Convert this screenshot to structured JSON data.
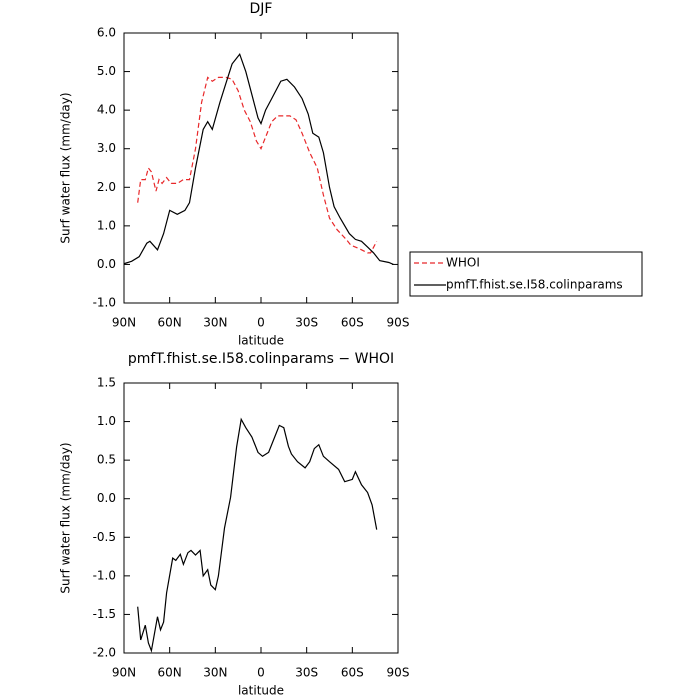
{
  "chart_data": [
    {
      "type": "line",
      "title": "DJF",
      "xlabel": "latitude",
      "ylabel": "Surf water flux (mm/day)",
      "xlim": [
        90,
        -90
      ],
      "xticks": [
        {
          "value": 90,
          "label": "90N"
        },
        {
          "value": 60,
          "label": "60N"
        },
        {
          "value": 30,
          "label": "30N"
        },
        0,
        {
          "value": -30,
          "label": "30S"
        },
        {
          "value": -60,
          "label": "60S"
        },
        {
          "value": -90,
          "label": "90S"
        }
      ],
      "ylim": [
        -1,
        6
      ],
      "yticks": [
        {
          "value": -1,
          "label": "-1.0"
        },
        {
          "value": 0,
          "label": "0.0"
        },
        {
          "value": 1,
          "label": "1.0"
        },
        {
          "value": 2,
          "label": "2.0"
        },
        {
          "value": 3,
          "label": "3.0"
        },
        {
          "value": 4,
          "label": "4.0"
        },
        {
          "value": 5,
          "label": "5.0"
        },
        {
          "value": 6,
          "label": "6.0"
        }
      ],
      "legend": "outside-right",
      "series": [
        {
          "name": "WHOI",
          "color": "#e8282a",
          "dash": true,
          "x": [
            81,
            79,
            76,
            74,
            72,
            69,
            67,
            65,
            62,
            59,
            55,
            51,
            47,
            43,
            39,
            35,
            32,
            28,
            23,
            19,
            15,
            11,
            7,
            3,
            0,
            -3,
            -7,
            -11,
            -19,
            -23,
            -27,
            -32,
            -37,
            -41,
            -45,
            -50,
            -56,
            -59,
            -65,
            -70,
            -72,
            -76
          ],
          "values": [
            1.6,
            2.2,
            2.2,
            2.5,
            2.4,
            1.9,
            2.2,
            2.1,
            2.25,
            2.1,
            2.1,
            2.2,
            2.2,
            3.0,
            4.2,
            4.85,
            4.75,
            4.85,
            4.85,
            4.8,
            4.5,
            4.0,
            3.7,
            3.2,
            3.0,
            3.3,
            3.7,
            3.85,
            3.85,
            3.75,
            3.4,
            2.9,
            2.5,
            1.8,
            1.2,
            0.9,
            0.65,
            0.5,
            0.4,
            0.3,
            0.3,
            0.6
          ]
        },
        {
          "name": "pmfT.fhist.se.I58.colinparams",
          "color": "#000000",
          "dash": false,
          "x": [
            90,
            85,
            80,
            75,
            73,
            68,
            64,
            60,
            55,
            50,
            47,
            43,
            38,
            35,
            32,
            27,
            23,
            19,
            14,
            10,
            6,
            2,
            0,
            -3,
            -7,
            -13,
            -17,
            -22,
            -27,
            -31,
            -34,
            -38,
            -41,
            -45,
            -48,
            -52,
            -58,
            -62,
            -66,
            -70,
            -74,
            -78,
            -84,
            -87
          ],
          "values": [
            0.02,
            0.08,
            0.2,
            0.55,
            0.6,
            0.38,
            0.8,
            1.4,
            1.3,
            1.4,
            1.6,
            2.5,
            3.5,
            3.7,
            3.5,
            4.2,
            4.7,
            5.2,
            5.45,
            5.0,
            4.4,
            3.8,
            3.65,
            4.0,
            4.3,
            4.75,
            4.8,
            4.6,
            4.3,
            3.9,
            3.4,
            3.3,
            2.9,
            2.0,
            1.5,
            1.2,
            0.8,
            0.65,
            0.6,
            0.45,
            0.3,
            0.1,
            0.05,
            0.0
          ]
        }
      ]
    },
    {
      "type": "line",
      "title": "pmfT.fhist.se.I58.colinparams − WHOI",
      "xlabel": "latitude",
      "ylabel": "Surf water flux (mm/day)",
      "xlim": [
        90,
        -90
      ],
      "xticks": [
        {
          "value": 90,
          "label": "90N"
        },
        {
          "value": 60,
          "label": "60N"
        },
        {
          "value": 30,
          "label": "30N"
        },
        0,
        {
          "value": -30,
          "label": "30S"
        },
        {
          "value": -60,
          "label": "60S"
        },
        {
          "value": -90,
          "label": "90S"
        }
      ],
      "ylim": [
        -2,
        1.5
      ],
      "yticks": [
        {
          "value": -2,
          "label": "-2.0"
        },
        {
          "value": -1.5,
          "label": "-1.5"
        },
        {
          "value": -1,
          "label": "-1.0"
        },
        {
          "value": -0.5,
          "label": "-0.5"
        },
        {
          "value": 0,
          "label": "0.0"
        },
        {
          "value": 0.5,
          "label": "0.5"
        },
        {
          "value": 1,
          "label": "1.0"
        },
        {
          "value": 1.5,
          "label": "1.5"
        }
      ],
      "series": [
        {
          "color": "#000000",
          "dash": false,
          "x": [
            81,
            79,
            76,
            74,
            72,
            68,
            66,
            64,
            62,
            58,
            56,
            53,
            51,
            48,
            46,
            43,
            40,
            38,
            35,
            33,
            30,
            28,
            24,
            20,
            16,
            13,
            10,
            6,
            2,
            -1,
            -5,
            -9,
            -12,
            -15,
            -18,
            -20,
            -24,
            -29,
            -32,
            -35,
            -38,
            -41,
            -45,
            -51,
            -55,
            -60,
            -62,
            -66,
            -70,
            -73,
            -76
          ],
          "values": [
            -1.4,
            -1.83,
            -1.64,
            -1.87,
            -1.97,
            -1.53,
            -1.7,
            -1.6,
            -1.22,
            -0.77,
            -0.8,
            -0.72,
            -0.85,
            -0.7,
            -0.67,
            -0.73,
            -0.67,
            -1.0,
            -0.92,
            -1.12,
            -1.18,
            -1.0,
            -0.38,
            0.02,
            0.67,
            1.03,
            0.92,
            0.8,
            0.6,
            0.55,
            0.6,
            0.8,
            0.95,
            0.92,
            0.68,
            0.58,
            0.48,
            0.4,
            0.48,
            0.65,
            0.7,
            0.55,
            0.48,
            0.38,
            0.22,
            0.25,
            0.35,
            0.18,
            0.08,
            -0.08,
            -0.4
          ]
        }
      ]
    }
  ]
}
